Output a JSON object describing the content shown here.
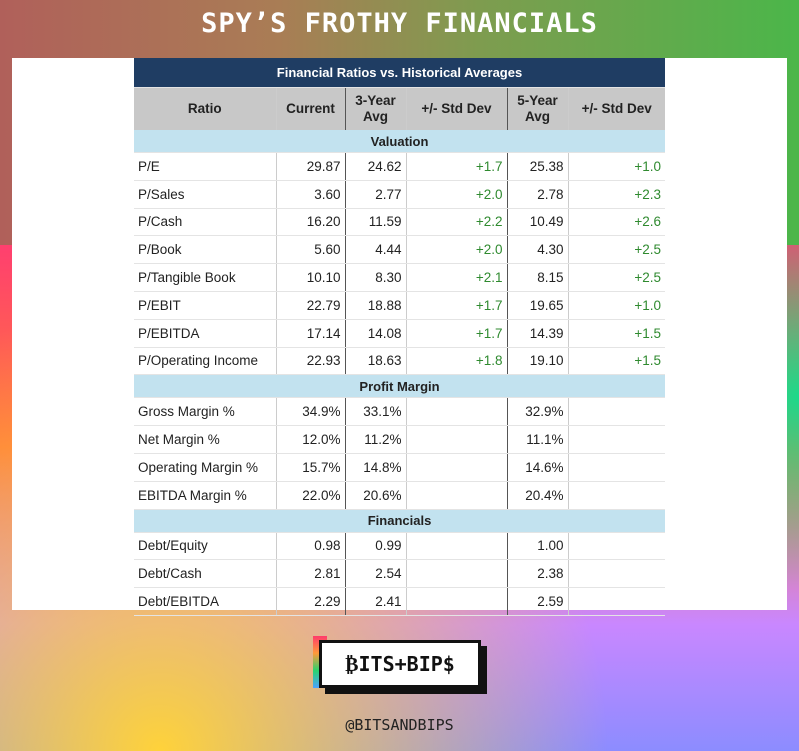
{
  "page": {
    "title": "SPY’S FROTHY FINANCIALS",
    "handle": "@BITSANDBIPS",
    "logo": "₿ITS+BIP$"
  },
  "table": {
    "caption": "Financial Ratios vs. Historical Averages",
    "headers": [
      "Ratio",
      "Current",
      "3-Year Avg",
      "+/- Std Dev",
      "5-Year Avg",
      "+/- Std Dev"
    ],
    "sections": [
      {
        "name": "Valuation",
        "rows": [
          [
            "P/E",
            "29.87",
            "24.62",
            "+1.7",
            "25.38",
            "+1.0"
          ],
          [
            "P/Sales",
            "3.60",
            "2.77",
            "+2.0",
            "2.78",
            "+2.3"
          ],
          [
            "P/Cash",
            "16.20",
            "11.59",
            "+2.2",
            "10.49",
            "+2.6"
          ],
          [
            "P/Book",
            "5.60",
            "4.44",
            "+2.0",
            "4.30",
            "+2.5"
          ],
          [
            "P/Tangible Book",
            "10.10",
            "8.30",
            "+2.1",
            "8.15",
            "+2.5"
          ],
          [
            "P/EBIT",
            "22.79",
            "18.88",
            "+1.7",
            "19.65",
            "+1.0"
          ],
          [
            "P/EBITDA",
            "17.14",
            "14.08",
            "+1.7",
            "14.39",
            "+1.5"
          ],
          [
            "P/Operating Income",
            "22.93",
            "18.63",
            "+1.8",
            "19.10",
            "+1.5"
          ]
        ]
      },
      {
        "name": "Profit Margin",
        "rows": [
          [
            "Gross Margin %",
            "34.9%",
            "33.1%",
            "",
            "32.9%",
            ""
          ],
          [
            "Net Margin %",
            "12.0%",
            "11.2%",
            "",
            "11.1%",
            ""
          ],
          [
            "Operating Margin %",
            "15.7%",
            "14.8%",
            "",
            "14.6%",
            ""
          ],
          [
            "EBITDA Margin %",
            "22.0%",
            "20.6%",
            "",
            "20.4%",
            ""
          ]
        ]
      },
      {
        "name": "Financials",
        "rows": [
          [
            "Debt/Equity",
            "0.98",
            "0.99",
            "",
            "1.00",
            ""
          ],
          [
            "Debt/Cash",
            "2.81",
            "2.54",
            "",
            "2.38",
            ""
          ],
          [
            "Debt/EBITDA",
            "2.29",
            "2.41",
            "",
            "2.59",
            ""
          ]
        ]
      }
    ]
  },
  "colors": {
    "caption_bg": "#1f3d63",
    "header_bg": "#c8c8c8",
    "section_bg": "#c2e2ef",
    "positive": "#2f8a2f"
  }
}
